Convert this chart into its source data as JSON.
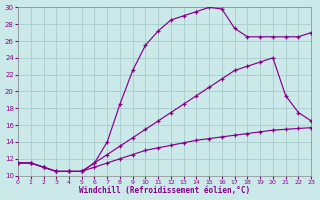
{
  "xlabel": "Windchill (Refroidissement éolien,°C)",
  "bg_color": "#cce9e9",
  "grid_color": "#aacccc",
  "line_color": "#880088",
  "xlim": [
    0,
    23
  ],
  "ylim": [
    10,
    30
  ],
  "xticks": [
    0,
    1,
    2,
    3,
    4,
    5,
    6,
    7,
    8,
    9,
    10,
    11,
    12,
    13,
    14,
    15,
    16,
    17,
    18,
    19,
    20,
    21,
    22,
    23
  ],
  "yticks": [
    10,
    12,
    14,
    16,
    18,
    20,
    22,
    24,
    26,
    28,
    30
  ],
  "curve_top_x": [
    0,
    1,
    2,
    3,
    4,
    5,
    6,
    7,
    8,
    9,
    10,
    11,
    12,
    13,
    14,
    15,
    16,
    17,
    18,
    19,
    20,
    21,
    22,
    23
  ],
  "curve_top_y": [
    11.5,
    11.5,
    11.0,
    10.5,
    10.5,
    10.5,
    11.5,
    14.0,
    18.5,
    22.5,
    25.5,
    27.2,
    28.5,
    29.0,
    29.5,
    30.0,
    29.8,
    27.5,
    26.5,
    26.5,
    26.5,
    26.5,
    26.5,
    27.0
  ],
  "curve_mid_x": [
    0,
    1,
    2,
    3,
    4,
    5,
    6,
    7,
    8,
    9,
    10,
    11,
    12,
    13,
    14,
    15,
    16,
    17,
    18,
    19,
    20,
    21,
    22,
    23
  ],
  "curve_mid_y": [
    11.5,
    11.5,
    11.0,
    10.5,
    10.5,
    10.5,
    11.5,
    12.5,
    13.5,
    14.5,
    15.5,
    16.5,
    17.5,
    18.5,
    19.5,
    20.5,
    21.5,
    22.5,
    23.0,
    23.5,
    24.0,
    19.5,
    17.5,
    16.5
  ],
  "curve_bot_x": [
    0,
    1,
    2,
    3,
    4,
    5,
    6,
    7,
    8,
    9,
    10,
    11,
    12,
    13,
    14,
    15,
    16,
    17,
    18,
    19,
    20,
    21,
    22,
    23
  ],
  "curve_bot_y": [
    11.5,
    11.5,
    11.0,
    10.5,
    10.5,
    10.5,
    11.0,
    11.5,
    12.0,
    12.5,
    13.0,
    13.3,
    13.6,
    13.9,
    14.2,
    14.4,
    14.6,
    14.8,
    15.0,
    15.2,
    15.4,
    15.5,
    15.6,
    15.7
  ]
}
